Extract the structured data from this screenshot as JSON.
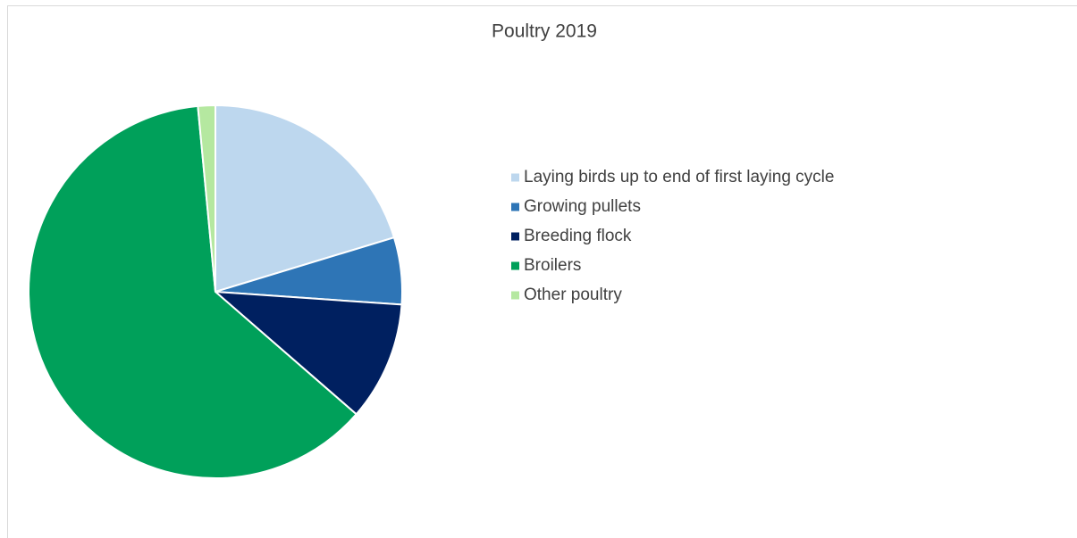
{
  "chart_data": {
    "type": "pie",
    "title": "Poultry 2019",
    "categories": [
      "Laying birds up to end of first laying cycle",
      "Growing pullets",
      "Breeding flock",
      "Broilers",
      "Other poultry"
    ],
    "values": [
      20.3,
      5.8,
      10.3,
      62.1,
      1.5
    ],
    "colors": [
      "#bdd7ee",
      "#2e75b6",
      "#002060",
      "#00a05a",
      "#b5e8a0"
    ],
    "legend": "right"
  }
}
